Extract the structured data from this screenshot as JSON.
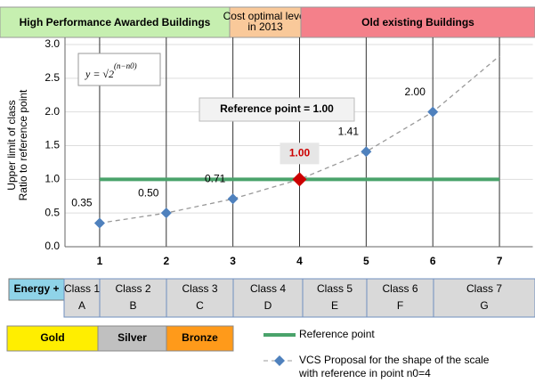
{
  "header": [
    {
      "text": "High  Performance Awarded Buildings",
      "color": "#c6efb0"
    },
    {
      "text": "Cost optimal level  in 2013",
      "color": "#f9c99a"
    },
    {
      "text": "Old existing Buildings",
      "color": "#f4808a"
    }
  ],
  "chart_data": {
    "type": "line",
    "y_label": [
      "Upper limit of class",
      "Ratio to reference point"
    ],
    "formula": {
      "base": "y = √2",
      "exponent": "(n−n0)"
    },
    "reference_box": "Reference point = 1.00",
    "x": [
      1,
      2,
      3,
      4,
      5,
      6,
      7
    ],
    "xlim": [
      0.48,
      7.5
    ],
    "xticks": [
      1,
      2,
      3,
      4,
      5,
      6,
      7
    ],
    "ylim": [
      0,
      3
    ],
    "yticks": [
      {
        "value": 0,
        "label": "0.0"
      },
      {
        "value": 0.5,
        "label": "0.5"
      },
      {
        "value": 1,
        "label": "1.0"
      },
      {
        "value": 1.5,
        "label": "1.5"
      },
      {
        "value": 2,
        "label": "2.0"
      },
      {
        "value": 2.5,
        "label": "2.5"
      },
      {
        "value": 3,
        "label": "3.0"
      }
    ],
    "grid": true,
    "series": [
      {
        "name": "VCS Proposal for the shape of the scale",
        "color": "#4f81bd",
        "values": [
          0.35,
          0.5,
          0.71,
          1,
          1.41,
          2,
          2.83
        ],
        "value_labels": [
          "0.35",
          "0.50",
          "0.71",
          "1.00",
          "1.41",
          "2.00",
          null
        ],
        "highlight": {
          "index": 3,
          "color": "#cc0000"
        }
      },
      {
        "name": "Reference point",
        "color": "#4aa36b",
        "x": [
          1,
          7
        ],
        "values": [
          1,
          1
        ]
      }
    ]
  },
  "class_table": {
    "label": "Energy +",
    "classes": [
      [
        "Class 1",
        "A"
      ],
      [
        "Class 2",
        "B"
      ],
      [
        "Class 3",
        "C"
      ],
      [
        "Class 4",
        "D"
      ],
      [
        "Class 5",
        "E"
      ],
      [
        "Class 6",
        "F"
      ],
      [
        "Class 7",
        "G"
      ]
    ]
  },
  "legend": {
    "medals": [
      {
        "text": "Gold",
        "color": "#ffee00"
      },
      {
        "text": "Silver",
        "color": "#c0c0c0"
      },
      {
        "text": "Bronze",
        "color": "#ff9a1a"
      }
    ],
    "reference": "Reference point",
    "proposal": [
      "VCS Proposal for the shape of the scale",
      "with reference in point n0=4"
    ]
  }
}
